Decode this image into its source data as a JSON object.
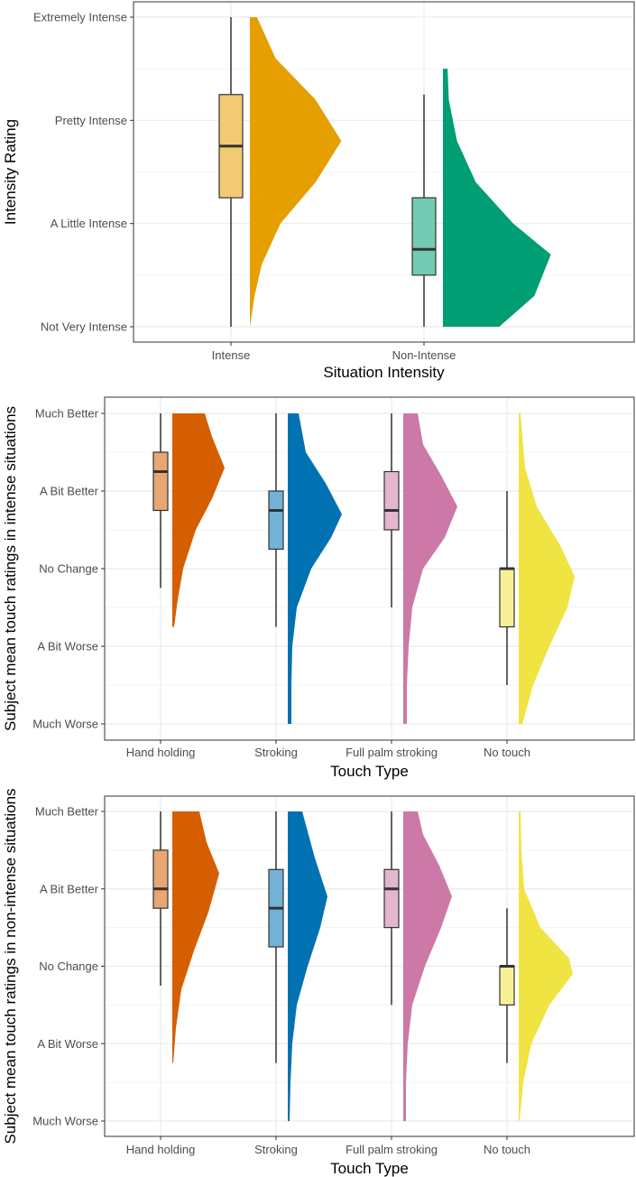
{
  "chart_data": [
    {
      "type": "raincloud",
      "xlabel": "Situation Intensity",
      "ylabel": "Intensity Rating",
      "categories": [
        "Intense",
        "Non-Intense"
      ],
      "y_levels": [
        "Not Very Intense",
        "A Little Intense",
        "Pretty Intense",
        "Extremely Intense"
      ],
      "ylim": [
        1,
        4
      ],
      "grid": true,
      "series": [
        {
          "category": "Intense",
          "color": "#E69F00",
          "box": {
            "min": 1,
            "q1": 2.25,
            "median": 2.75,
            "q3": 3.25,
            "max": 4
          },
          "density": [
            [
              1,
              0.0
            ],
            [
              1.3,
              0.04
            ],
            [
              1.6,
              0.1
            ],
            [
              2.0,
              0.26
            ],
            [
              2.4,
              0.56
            ],
            [
              2.8,
              0.78
            ],
            [
              3.2,
              0.56
            ],
            [
              3.6,
              0.22
            ],
            [
              4.0,
              0.06
            ]
          ]
        },
        {
          "category": "Non-Intense",
          "color": "#009E73",
          "box": {
            "min": 1,
            "q1": 1.5,
            "median": 1.75,
            "q3": 2.25,
            "max": 3.25
          },
          "density": [
            [
              1.0,
              0.48
            ],
            [
              1.3,
              0.78
            ],
            [
              1.7,
              0.92
            ],
            [
              2.0,
              0.6
            ],
            [
              2.4,
              0.28
            ],
            [
              2.8,
              0.12
            ],
            [
              3.2,
              0.05
            ],
            [
              3.5,
              0.04
            ]
          ]
        }
      ]
    },
    {
      "type": "raincloud",
      "xlabel": "Touch Type",
      "ylabel": "Subject mean touch ratings in intense situations",
      "categories": [
        "Hand holding",
        "Stroking",
        "Full palm stroking",
        "No touch"
      ],
      "y_levels": [
        "Much Worse",
        "A Bit Worse",
        "No Change",
        "A Bit Better",
        "Much Better"
      ],
      "ylim": [
        1,
        5
      ],
      "grid": true,
      "series": [
        {
          "category": "Hand holding",
          "color": "#D55E00",
          "box": {
            "min": 2.75,
            "q1": 3.75,
            "median": 4.25,
            "q3": 4.5,
            "max": 5
          },
          "density": [
            [
              2.25,
              0.02
            ],
            [
              2.6,
              0.06
            ],
            [
              3.0,
              0.12
            ],
            [
              3.5,
              0.26
            ],
            [
              3.9,
              0.44
            ],
            [
              4.3,
              0.58
            ],
            [
              4.7,
              0.44
            ],
            [
              5.0,
              0.36
            ]
          ]
        },
        {
          "category": "Stroking",
          "color": "#0072B2",
          "box": {
            "min": 2.25,
            "q1": 3.25,
            "median": 3.75,
            "q3": 4,
            "max": 5
          },
          "density": [
            [
              1.0,
              0.04
            ],
            [
              1.5,
              0.04
            ],
            [
              2.0,
              0.05
            ],
            [
              2.5,
              0.1
            ],
            [
              3.0,
              0.26
            ],
            [
              3.4,
              0.48
            ],
            [
              3.7,
              0.6
            ],
            [
              4.1,
              0.42
            ],
            [
              4.5,
              0.2
            ],
            [
              5.0,
              0.12
            ]
          ]
        },
        {
          "category": "Full palm stroking",
          "color": "#CC79A7",
          "box": {
            "min": 2.5,
            "q1": 3.5,
            "median": 3.75,
            "q3": 4.25,
            "max": 5
          },
          "density": [
            [
              1.0,
              0.04
            ],
            [
              1.5,
              0.04
            ],
            [
              2.0,
              0.06
            ],
            [
              2.5,
              0.1
            ],
            [
              3.0,
              0.22
            ],
            [
              3.4,
              0.46
            ],
            [
              3.8,
              0.6
            ],
            [
              4.2,
              0.42
            ],
            [
              4.6,
              0.22
            ],
            [
              5.0,
              0.16
            ]
          ]
        },
        {
          "category": "No touch",
          "color": "#F0E442",
          "box": {
            "min": 1.5,
            "q1": 2.25,
            "median": 3,
            "q3": 3,
            "max": 4
          },
          "density": [
            [
              1.0,
              0.04
            ],
            [
              1.5,
              0.16
            ],
            [
              2.0,
              0.34
            ],
            [
              2.5,
              0.54
            ],
            [
              2.9,
              0.62
            ],
            [
              3.3,
              0.46
            ],
            [
              3.8,
              0.2
            ],
            [
              4.3,
              0.07
            ],
            [
              5.0,
              0.02
            ]
          ]
        }
      ]
    },
    {
      "type": "raincloud",
      "xlabel": "Touch Type",
      "ylabel": "Subject mean touch ratings in non-intense situations",
      "categories": [
        "Hand holding",
        "Stroking",
        "Full palm stroking",
        "No touch"
      ],
      "y_levels": [
        "Much Worse",
        "A Bit Worse",
        "No Change",
        "A Bit Better",
        "Much Better"
      ],
      "ylim": [
        1,
        5
      ],
      "grid": true,
      "series": [
        {
          "category": "Hand holding",
          "color": "#D55E00",
          "box": {
            "min": 2.75,
            "q1": 3.75,
            "median": 4,
            "q3": 4.5,
            "max": 5
          },
          "density": [
            [
              1.75,
              0.01
            ],
            [
              2.2,
              0.04
            ],
            [
              2.7,
              0.1
            ],
            [
              3.2,
              0.24
            ],
            [
              3.7,
              0.4
            ],
            [
              4.2,
              0.52
            ],
            [
              4.6,
              0.38
            ],
            [
              5.0,
              0.3
            ]
          ]
        },
        {
          "category": "Stroking",
          "color": "#0072B2",
          "box": {
            "min": 1.75,
            "q1": 3.25,
            "median": 3.75,
            "q3": 4.25,
            "max": 5
          },
          "density": [
            [
              1.0,
              0.02
            ],
            [
              1.5,
              0.03
            ],
            [
              2.0,
              0.05
            ],
            [
              2.5,
              0.1
            ],
            [
              3.0,
              0.22
            ],
            [
              3.5,
              0.36
            ],
            [
              3.9,
              0.44
            ],
            [
              4.4,
              0.3
            ],
            [
              5.0,
              0.16
            ]
          ]
        },
        {
          "category": "Full palm stroking",
          "color": "#CC79A7",
          "box": {
            "min": 2.5,
            "q1": 3.5,
            "median": 4,
            "q3": 4.25,
            "max": 5
          },
          "density": [
            [
              1.0,
              0.03
            ],
            [
              1.5,
              0.03
            ],
            [
              2.0,
              0.05
            ],
            [
              2.5,
              0.1
            ],
            [
              3.0,
              0.24
            ],
            [
              3.5,
              0.42
            ],
            [
              3.9,
              0.54
            ],
            [
              4.3,
              0.4
            ],
            [
              4.7,
              0.22
            ],
            [
              5.0,
              0.16
            ]
          ]
        },
        {
          "category": "No touch",
          "color": "#F0E442",
          "box": {
            "min": 1.75,
            "q1": 2.5,
            "median": 3,
            "q3": 3,
            "max": 3.75
          },
          "density": [
            [
              1.0,
              0.01
            ],
            [
              1.5,
              0.05
            ],
            [
              2.0,
              0.14
            ],
            [
              2.5,
              0.34
            ],
            [
              2.9,
              0.6
            ],
            [
              3.1,
              0.56
            ],
            [
              3.5,
              0.24
            ],
            [
              4.0,
              0.06
            ],
            [
              4.5,
              0.03
            ],
            [
              5.0,
              0.02
            ]
          ]
        }
      ]
    }
  ]
}
